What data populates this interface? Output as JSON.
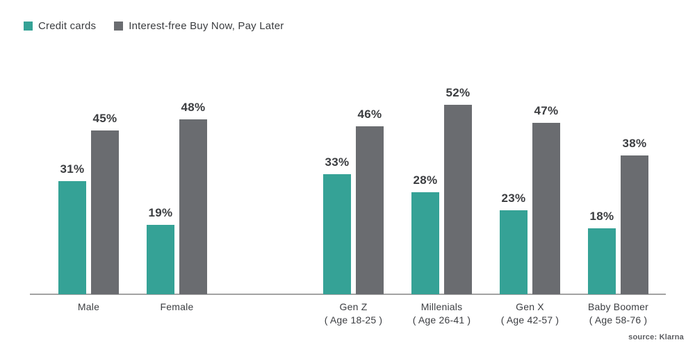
{
  "source": "source: Klarna",
  "chart_data": {
    "type": "bar",
    "title": "",
    "unit": "%",
    "categories": [
      {
        "label": "Male",
        "sublabel": ""
      },
      {
        "label": "Female",
        "sublabel": ""
      },
      {
        "label": "Gen Z",
        "sublabel": "( Age 18-25 )"
      },
      {
        "label": "Millenials",
        "sublabel": "( Age 26-41 )"
      },
      {
        "label": "Gen X",
        "sublabel": "( Age 42-57 )"
      },
      {
        "label": "Baby Boomer",
        "sublabel": "( Age 58-76 )"
      }
    ],
    "series": [
      {
        "name": "Credit cards",
        "color": "#35A296",
        "values": [
          31,
          19,
          33,
          28,
          23,
          18
        ]
      },
      {
        "name": "Interest-free Buy Now, Pay Later",
        "color": "#6A6C70",
        "values": [
          45,
          48,
          46,
          52,
          47,
          38
        ]
      }
    ],
    "ylim": [
      0,
      60
    ],
    "grid": false,
    "legend_position": "top-left",
    "value_labels": true,
    "group_gap_after_category": 1,
    "axis_line_color": "#a3a3a3"
  }
}
